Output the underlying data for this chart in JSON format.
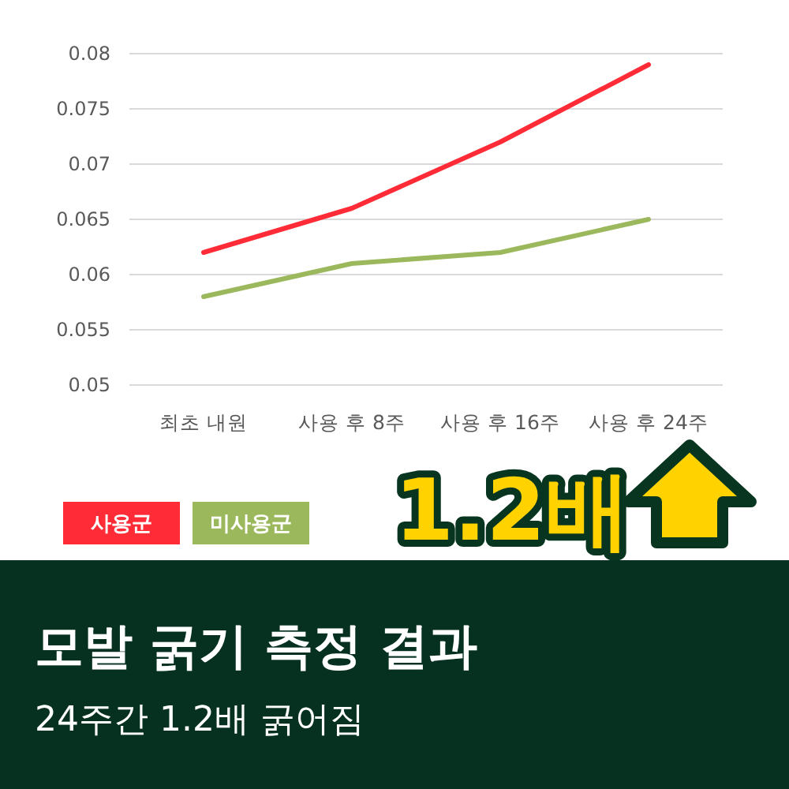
{
  "chart_data": {
    "type": "line",
    "title": "모발 굵기 측정 결과",
    "subtitle": "24주간 1.2배 굵어짐",
    "annotations": [
      "1.2배"
    ],
    "categories": [
      "최초 내원",
      "사용 후 8주",
      "사용 후 16주",
      "사용 후 24주"
    ],
    "series": [
      {
        "name": "사용군",
        "color": "#ff2b36",
        "values": [
          0.062,
          0.066,
          0.072,
          0.079
        ]
      },
      {
        "name": "미사용군",
        "color": "#9bb85c",
        "values": [
          0.058,
          0.061,
          0.062,
          0.065
        ]
      }
    ],
    "ylim": [
      0.05,
      0.08
    ],
    "yticks": [
      {
        "value": 0.05,
        "label": "0.05"
      },
      {
        "value": 0.055,
        "label": "0.055"
      },
      {
        "value": 0.06,
        "label": "0.06"
      },
      {
        "value": 0.065,
        "label": "0.065"
      },
      {
        "value": 0.07,
        "label": "0.07"
      },
      {
        "value": 0.075,
        "label": "0.075"
      },
      {
        "value": 0.08,
        "label": "0.08"
      }
    ],
    "grid": "y",
    "legend": "bottom left"
  }
}
